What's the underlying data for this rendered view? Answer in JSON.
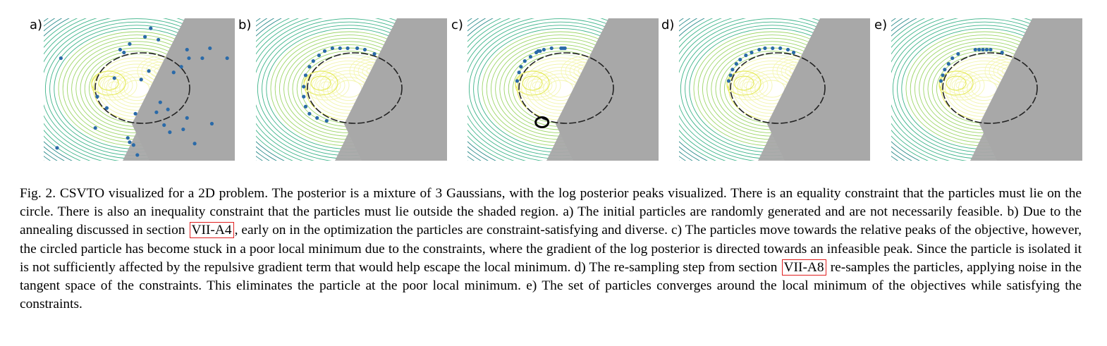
{
  "figure": {
    "panels": [
      {
        "label": "a)",
        "particles": [
          [
            0.76,
            0.28
          ],
          [
            0.75,
            0.22
          ],
          [
            0.87,
            0.21
          ],
          [
            0.83,
            0.28
          ],
          [
            0.72,
            0.34
          ],
          [
            0.68,
            0.38
          ],
          [
            0.55,
            0.37
          ],
          [
            0.51,
            0.43
          ],
          [
            0.37,
            0.42
          ],
          [
            0.33,
            0.63
          ],
          [
            0.28,
            0.55
          ],
          [
            0.27,
            0.77
          ],
          [
            0.44,
            0.84
          ],
          [
            0.48,
            0.67
          ],
          [
            0.59,
            0.66
          ],
          [
            0.61,
            0.59
          ],
          [
            0.63,
            0.75
          ],
          [
            0.66,
            0.8
          ],
          [
            0.73,
            0.78
          ],
          [
            0.75,
            0.7
          ],
          [
            0.79,
            0.88
          ],
          [
            0.88,
            0.74
          ],
          [
            0.49,
            0.96
          ],
          [
            0.47,
            0.89
          ],
          [
            0.45,
            0.87
          ],
          [
            0.65,
            0.64
          ],
          [
            0.45,
            0.18
          ],
          [
            0.56,
            0.07
          ],
          [
            0.6,
            0.15
          ],
          [
            0.53,
            0.13
          ],
          [
            0.4,
            0.22
          ],
          [
            0.42,
            0.24
          ],
          [
            0.07,
            0.91
          ],
          [
            0.09,
            0.28
          ],
          [
            0.96,
            0.28
          ]
        ]
      },
      {
        "label": "b)",
        "particles": [
          [
            0.26,
            0.4
          ],
          [
            0.28,
            0.34
          ],
          [
            0.3,
            0.3
          ],
          [
            0.33,
            0.26
          ],
          [
            0.36,
            0.23
          ],
          [
            0.4,
            0.21
          ],
          [
            0.44,
            0.21
          ],
          [
            0.48,
            0.21
          ],
          [
            0.53,
            0.21
          ],
          [
            0.57,
            0.22
          ],
          [
            0.62,
            0.25
          ],
          [
            0.25,
            0.48
          ],
          [
            0.25,
            0.55
          ],
          [
            0.26,
            0.62
          ],
          [
            0.28,
            0.67
          ],
          [
            0.32,
            0.7
          ],
          [
            0.37,
            0.72
          ]
        ]
      },
      {
        "label": "c)",
        "particles": [
          [
            0.26,
            0.44
          ],
          [
            0.27,
            0.38
          ],
          [
            0.28,
            0.34
          ],
          [
            0.3,
            0.3
          ],
          [
            0.33,
            0.27
          ],
          [
            0.36,
            0.24
          ],
          [
            0.4,
            0.22
          ],
          [
            0.44,
            0.21
          ],
          [
            0.49,
            0.21
          ],
          [
            0.5,
            0.21
          ],
          [
            0.51,
            0.21
          ],
          [
            0.38,
            0.23
          ],
          [
            0.37,
            0.23
          ]
        ],
        "circled": [
          0.39,
          0.73
        ]
      },
      {
        "label": "d)",
        "particles": [
          [
            0.26,
            0.44
          ],
          [
            0.27,
            0.4
          ],
          [
            0.28,
            0.36
          ],
          [
            0.3,
            0.32
          ],
          [
            0.32,
            0.29
          ],
          [
            0.35,
            0.26
          ],
          [
            0.38,
            0.24
          ],
          [
            0.42,
            0.22
          ],
          [
            0.45,
            0.21
          ],
          [
            0.49,
            0.21
          ],
          [
            0.53,
            0.21
          ],
          [
            0.57,
            0.22
          ],
          [
            0.6,
            0.24
          ]
        ]
      },
      {
        "label": "e)",
        "particles": [
          [
            0.26,
            0.44
          ],
          [
            0.27,
            0.4
          ],
          [
            0.28,
            0.36
          ],
          [
            0.3,
            0.32
          ],
          [
            0.32,
            0.28
          ],
          [
            0.35,
            0.25
          ],
          [
            0.44,
            0.22
          ],
          [
            0.46,
            0.22
          ],
          [
            0.48,
            0.22
          ],
          [
            0.5,
            0.22
          ],
          [
            0.52,
            0.22
          ],
          [
            0.58,
            0.24
          ]
        ]
      }
    ],
    "colors": {
      "particle": "#2a6aa8",
      "shade": "#a8a8a8",
      "dark_contour": "#3b2a6e",
      "mid_contour": "#2a8a8a",
      "light_contour": "#d8e04a"
    }
  },
  "caption": {
    "p1": "Fig. 2. CSVTO visualized for a 2D problem. The posterior is a mixture of 3 Gaussians, with the log posterior peaks visualized. There is an equality constraint that the particles must lie on the circle. There is also an inequality constraint that the particles must lie outside the shaded region. a) The initial particles are randomly generated and are not necessarily feasible. b) Due to the annealing discussed in section ",
    "ref1": "VII-A4",
    "p2": ", early on in the optimization the particles are constraint-satisfying and diverse. c) The particles move towards the relative peaks of the objective, however, the circled particle has become stuck in a poor local minimum due to the constraints, where the gradient of the log posterior is directed towards an infeasible peak. Since the particle is isolated it is not sufficiently affected by the repulsive gradient term that would help escape the local minimum. d) The re-sampling step from section ",
    "ref2": "VII-A8",
    "p3": " re-samples the particles, applying noise in the tangent space of the constraints. This eliminates the particle at the poor local minimum. e) The set of particles converges around the local minimum of the objectives while satisfying the constraints."
  }
}
